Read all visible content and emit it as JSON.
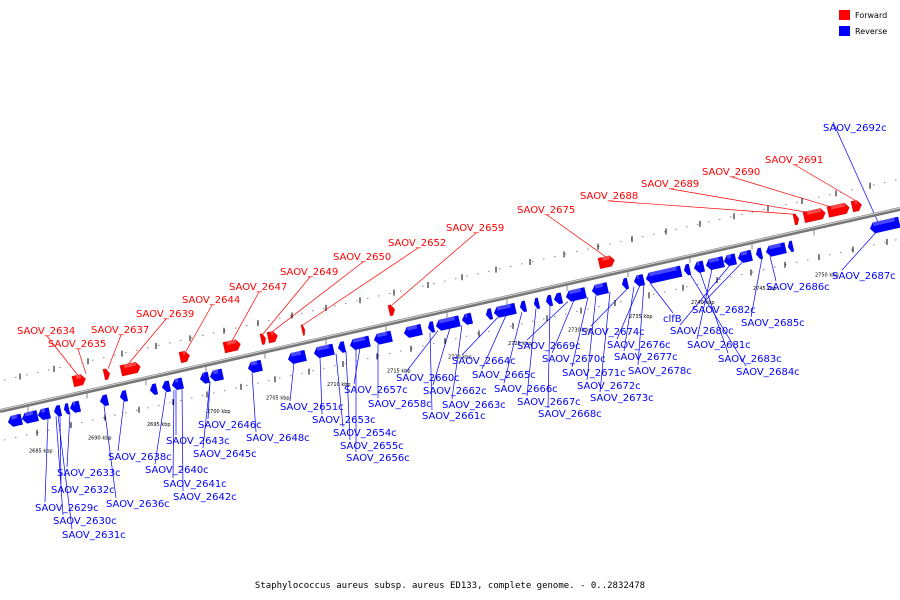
{
  "caption": "Staphylococcus aureus subsp. aureus ED133, complete genome. - 0..2832478",
  "legend": [
    {
      "label": "Forward",
      "color": "#ff0000"
    },
    {
      "label": "Reverse",
      "color": "#0000ff"
    }
  ],
  "colors": {
    "forward": "#ff0000",
    "reverse": "#0000ff",
    "backbone": "#888888"
  },
  "ticks": [
    "2685 kbp",
    "2690 kbp",
    "2695 kbp",
    "2700 kbp",
    "2705 kbp",
    "2710 kbp",
    "2715 kbp",
    "2720 kbp",
    "2725 kbp",
    "2730 kbp",
    "2735 kbp",
    "2740 kbp",
    "2745 kbp",
    "2750 kbp"
  ],
  "forward_labels": [
    "SAOV_2634",
    "SAOV_2635",
    "SAOV_2637",
    "SAOV_2639",
    "SAOV_2644",
    "SAOV_2647",
    "SAOV_2649",
    "SAOV_2650",
    "SAOV_2652",
    "SAOV_2659",
    "SAOV_2675",
    "SAOV_2688",
    "SAOV_2689",
    "SAOV_2690",
    "SAOV_2691"
  ],
  "reverse_labels": [
    "SAOV_2692c",
    "SAOV_2687c",
    "SAOV_2686c",
    "SAOV_2685c",
    "SAOV_2682c",
    "SAOV_2680c",
    "SAOV_2681c",
    "SAOV_2683c",
    "SAOV_2684c",
    "clfB",
    "SAOV_2674c",
    "SAOV_2676c",
    "SAOV_2677c",
    "SAOV_2678c",
    "SAOV_2669c",
    "SAOV_2670c",
    "SAOV_2671c",
    "SAOV_2672c",
    "SAOV_2673c",
    "SAOV_2664c",
    "SAOV_2665c",
    "SAOV_2666c",
    "SAOV_2667c",
    "SAOV_2668c",
    "SAOV_2660c",
    "SAOV_2662c",
    "SAOV_2663c",
    "SAOV_2661c",
    "SAOV_2657c",
    "SAOV_2658c",
    "SAOV_2651c",
    "SAOV_2653c",
    "SAOV_2654c",
    "SAOV_2655c",
    "SAOV_2656c",
    "SAOV_2646c",
    "SAOV_2648c",
    "SAOV_2643c",
    "SAOV_2645c",
    "SAOV_2638c",
    "SAOV_2640c",
    "SAOV_2641c",
    "SAOV_2642c",
    "SAOV_2633c",
    "SAOV_2632c",
    "SAOV_2636c",
    "SAOV_2629c",
    "SAOV_2630c",
    "SAOV_2631c"
  ]
}
